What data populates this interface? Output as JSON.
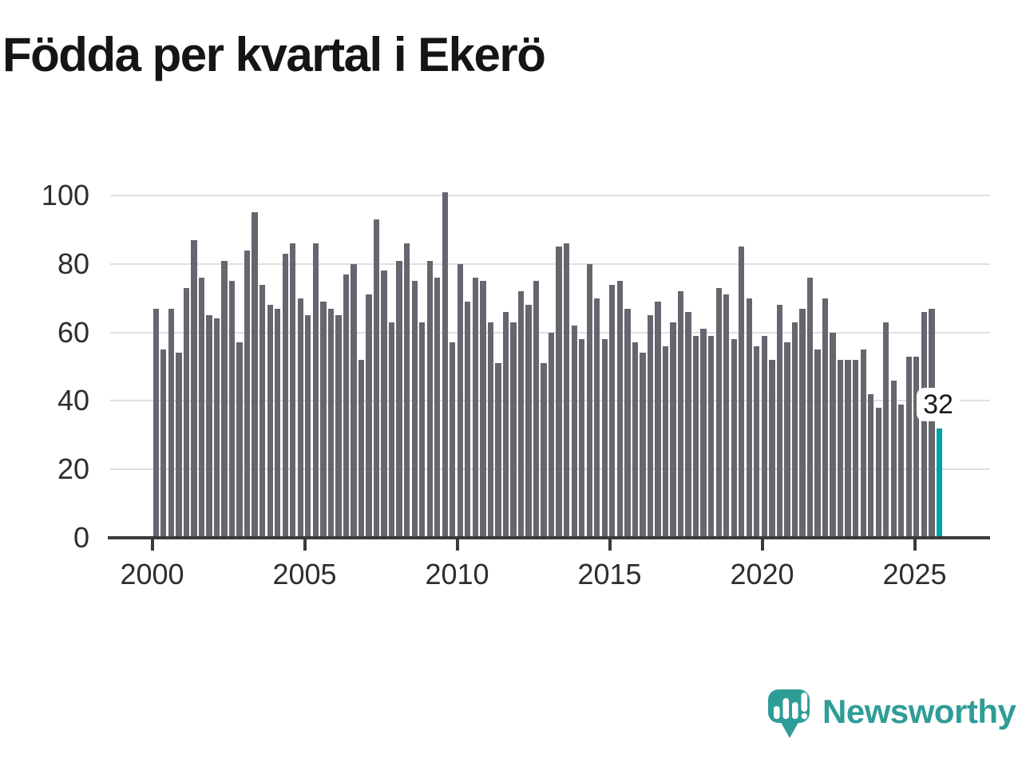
{
  "title": "Födda per kvartal i Ekerö",
  "chart_data": {
    "type": "bar",
    "title": "Födda per kvartal i Ekerö",
    "categories": [
      "2000-Q1",
      "2000-Q2",
      "2000-Q3",
      "2000-Q4",
      "2001-Q1",
      "2001-Q2",
      "2001-Q3",
      "2001-Q4",
      "2002-Q1",
      "2002-Q2",
      "2002-Q3",
      "2002-Q4",
      "2003-Q1",
      "2003-Q2",
      "2003-Q3",
      "2003-Q4",
      "2004-Q1",
      "2004-Q2",
      "2004-Q3",
      "2004-Q4",
      "2005-Q1",
      "2005-Q2",
      "2005-Q3",
      "2005-Q4",
      "2006-Q1",
      "2006-Q2",
      "2006-Q3",
      "2006-Q4",
      "2007-Q1",
      "2007-Q2",
      "2007-Q3",
      "2007-Q4",
      "2008-Q1",
      "2008-Q2",
      "2008-Q3",
      "2008-Q4",
      "2009-Q1",
      "2009-Q2",
      "2009-Q3",
      "2009-Q4",
      "2010-Q1",
      "2010-Q2",
      "2010-Q3",
      "2010-Q4",
      "2011-Q1",
      "2011-Q2",
      "2011-Q3",
      "2011-Q4",
      "2012-Q1",
      "2012-Q2",
      "2012-Q3",
      "2012-Q4",
      "2013-Q1",
      "2013-Q2",
      "2013-Q3",
      "2013-Q4",
      "2014-Q1",
      "2014-Q2",
      "2014-Q3",
      "2014-Q4",
      "2015-Q1",
      "2015-Q2",
      "2015-Q3",
      "2015-Q4",
      "2016-Q1",
      "2016-Q2",
      "2016-Q3",
      "2016-Q4",
      "2017-Q1",
      "2017-Q2",
      "2017-Q3",
      "2017-Q4",
      "2018-Q1",
      "2018-Q2",
      "2018-Q3",
      "2018-Q4",
      "2019-Q1",
      "2019-Q2",
      "2019-Q3",
      "2019-Q4",
      "2020-Q1",
      "2020-Q2",
      "2020-Q3",
      "2020-Q4",
      "2021-Q1",
      "2021-Q2",
      "2021-Q3",
      "2021-Q4",
      "2022-Q1",
      "2022-Q2",
      "2022-Q3",
      "2022-Q4",
      "2023-Q1",
      "2023-Q2",
      "2023-Q3",
      "2023-Q4",
      "2024-Q1",
      "2024-Q2",
      "2024-Q3",
      "2024-Q4",
      "2025-Q1",
      "2025-Q2",
      "2025-Q3",
      "2025-Q4"
    ],
    "values": [
      67,
      55,
      67,
      54,
      73,
      87,
      76,
      65,
      64,
      81,
      75,
      57,
      84,
      95,
      74,
      68,
      67,
      83,
      86,
      70,
      65,
      86,
      69,
      67,
      65,
      77,
      80,
      52,
      71,
      93,
      78,
      63,
      81,
      86,
      75,
      63,
      81,
      76,
      101,
      57,
      80,
      69,
      76,
      75,
      63,
      51,
      66,
      63,
      72,
      68,
      75,
      51,
      60,
      85,
      86,
      62,
      58,
      80,
      70,
      58,
      74,
      75,
      67,
      57,
      54,
      65,
      69,
      56,
      63,
      72,
      66,
      59,
      61,
      59,
      73,
      71,
      58,
      85,
      70,
      56,
      59,
      52,
      68,
      57,
      63,
      67,
      76,
      55,
      70,
      60,
      52,
      52,
      52,
      55,
      42,
      38,
      63,
      46,
      39,
      53,
      53,
      66,
      67,
      32
    ],
    "highlight_index": 103,
    "highlight_value": 32,
    "highlight_label": "32",
    "bar_color": "#67666f",
    "highlight_color": "#00a3a8",
    "ylim": [
      0,
      105
    ],
    "yticks": [
      "0",
      "20",
      "40",
      "60",
      "80",
      "100"
    ],
    "xticks": [
      "2000",
      "2005",
      "2010",
      "2015",
      "2020",
      "2025"
    ],
    "grid": true,
    "legend_position": "none",
    "xlabel": "",
    "ylabel": ""
  },
  "footer": {
    "brand": "Newsworthy",
    "brand_color": "#2f9d97",
    "logo_icon": "speech-bubble-bar-chart-icon"
  }
}
